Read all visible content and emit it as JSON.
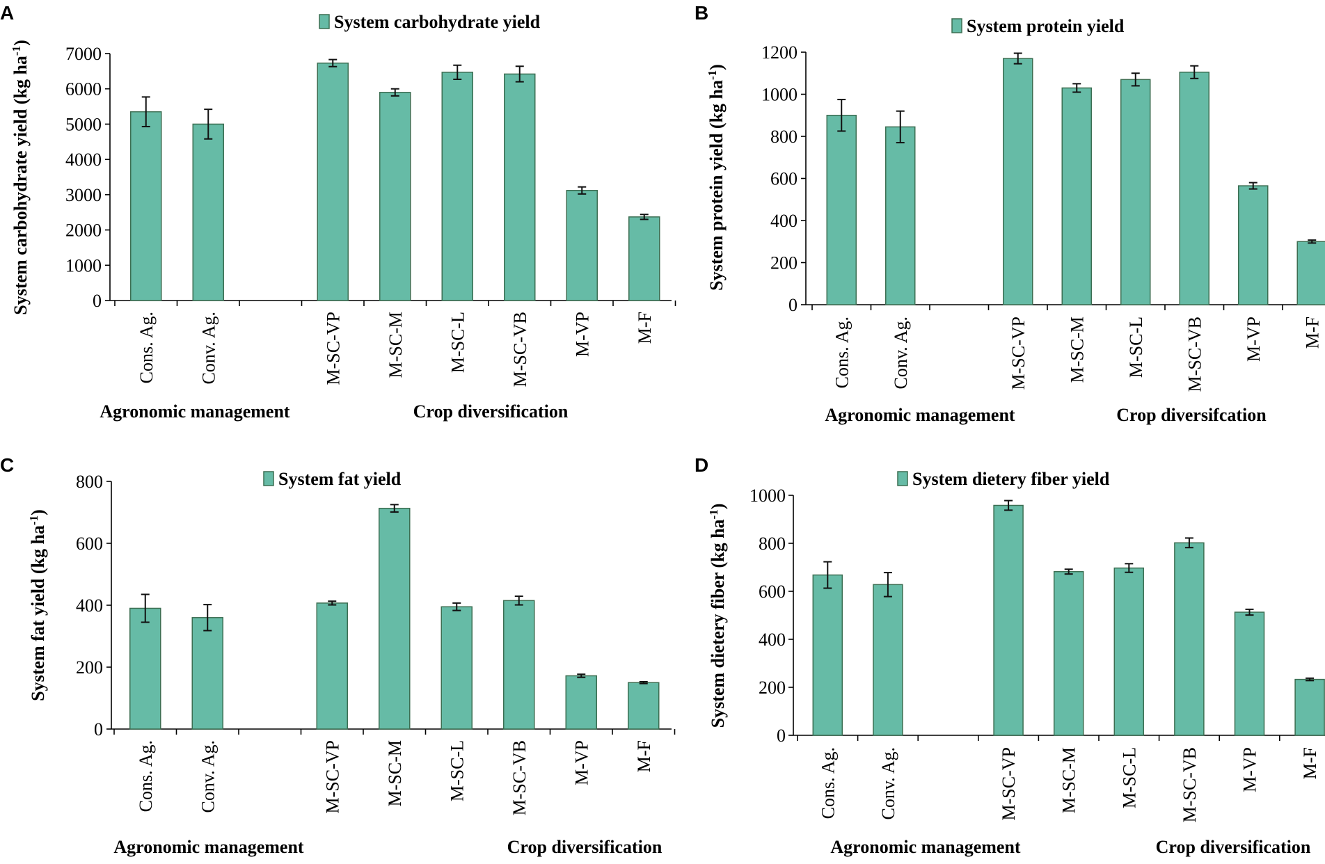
{
  "figure": {
    "bar_color": "#66bba6",
    "bar_stroke": "#3c6e52",
    "axis_color": "#000000"
  },
  "chart_data": [
    {
      "panel": "A",
      "type": "bar",
      "title": "",
      "legend": "System carbohydrate yield",
      "ylabel": "System carbohydrate yield (kg ha",
      "ylabel_sup": "-1",
      "ylabel_end": ")",
      "ylim": [
        0,
        7000
      ],
      "yticks": [
        0,
        1000,
        2000,
        3000,
        4000,
        5000,
        6000,
        7000
      ],
      "categories": [
        "Cons. Ag.",
        "Conv. Ag.",
        "",
        "M-SC-VP",
        "M-SC-M",
        "M-SC-L",
        "M-SC-VB",
        "M-VP",
        "M-F"
      ],
      "values": [
        5350,
        5000,
        null,
        6730,
        5900,
        6470,
        6420,
        3120,
        2370
      ],
      "errors": [
        420,
        420,
        null,
        100,
        100,
        200,
        220,
        100,
        70
      ],
      "groups": [
        "Agronomic management",
        "Crop diversification"
      ]
    },
    {
      "panel": "B",
      "type": "bar",
      "title": "",
      "legend": "System protein yield",
      "ylabel": "System protein yield (kg ha",
      "ylabel_sup": "-1",
      "ylabel_end": ")",
      "ylim": [
        0,
        1200
      ],
      "yticks": [
        0,
        200,
        400,
        600,
        800,
        1000,
        1200
      ],
      "categories": [
        "Cons. Ag.",
        "Conv. Ag.",
        "",
        "M-SC-VP",
        "M-SC-M",
        "M-SC-L",
        "M-SC-VB",
        "M-VP",
        "M-F"
      ],
      "values": [
        900,
        845,
        null,
        1170,
        1030,
        1070,
        1105,
        565,
        300
      ],
      "errors": [
        75,
        75,
        null,
        25,
        20,
        30,
        30,
        15,
        7
      ],
      "groups": [
        "Agronomic management",
        "Crop diversifcation"
      ]
    },
    {
      "panel": "C",
      "type": "bar",
      "title": "",
      "legend": "System fat yield",
      "ylabel": "System fat yield (kg ha",
      "ylabel_sup": "-1",
      "ylabel_end": ")",
      "ylim": [
        0,
        800
      ],
      "yticks": [
        0,
        200,
        400,
        600,
        800
      ],
      "categories": [
        "Cons. Ag.",
        "Conv. Ag.",
        "",
        "M-SC-VP",
        "M-SC-M",
        "M-SC-L",
        "M-SC-VB",
        "M-VP",
        "M-F"
      ],
      "values": [
        390,
        360,
        null,
        407,
        713,
        395,
        415,
        172,
        150
      ],
      "errors": [
        45,
        42,
        null,
        6,
        12,
        12,
        14,
        5,
        3
      ],
      "groups": [
        "Agronomic management",
        "Crop diversification"
      ]
    },
    {
      "panel": "D",
      "type": "bar",
      "title": "",
      "legend": "System dietery fiber yield",
      "ylabel": "System dietery fiber (kg ha",
      "ylabel_sup": "-1",
      "ylabel_end": ")",
      "ylim": [
        0,
        1000
      ],
      "yticks": [
        0,
        200,
        400,
        600,
        800,
        1000
      ],
      "categories": [
        "Cons. Ag.",
        "Conv. Ag.",
        "",
        "M-SC-VP",
        "M-SC-M",
        "M-SC-L",
        "M-SC-VB",
        "M-VP",
        "M-F"
      ],
      "values": [
        668,
        628,
        null,
        958,
        682,
        697,
        802,
        513,
        233
      ],
      "errors": [
        55,
        50,
        null,
        20,
        10,
        18,
        20,
        12,
        5
      ],
      "groups": [
        "Agronomic management",
        "Crop diversification"
      ]
    }
  ]
}
